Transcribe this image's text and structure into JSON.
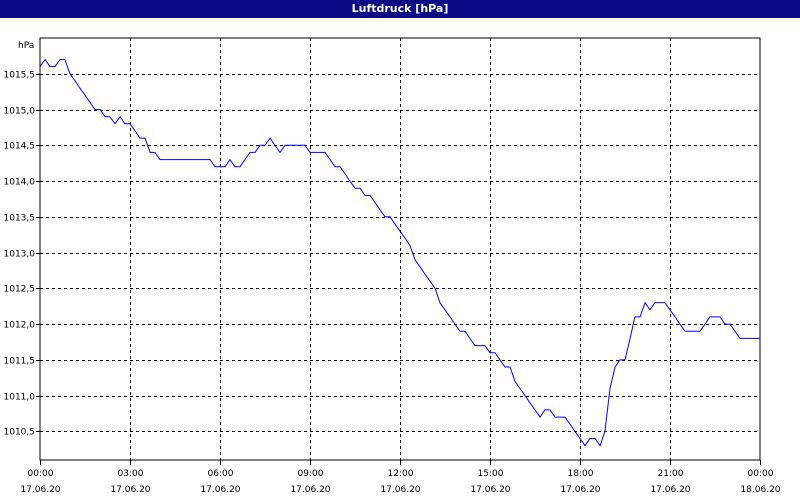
{
  "window": {
    "title": "Luftdruck [hPa]"
  },
  "chart_data": {
    "type": "line",
    "title": "Luftdruck [hPa]",
    "ylabel": "hPa",
    "xlabel": "",
    "ylim": [
      1010.1,
      1016.0
    ],
    "y_ticks": [
      1010.5,
      1011.0,
      1011.5,
      1012.0,
      1012.5,
      1013.0,
      1013.5,
      1014.0,
      1014.5,
      1015.0,
      1015.5
    ],
    "y_tick_labels": [
      "1010,5",
      "1011,0",
      "1011,5",
      "1012,0",
      "1012,5",
      "1013,0",
      "1013,5",
      "1014,0",
      "1014,5",
      "1015,0",
      "1015,5"
    ],
    "xlim_hours": [
      0,
      24
    ],
    "x_ticks": [
      {
        "hour": 0,
        "time": "00:00",
        "date": "17.06.20"
      },
      {
        "hour": 3,
        "time": "03:00",
        "date": "17.06.20"
      },
      {
        "hour": 6,
        "time": "06:00",
        "date": "17.06.20"
      },
      {
        "hour": 9,
        "time": "09:00",
        "date": "17.06.20"
      },
      {
        "hour": 12,
        "time": "12:00",
        "date": "17.06.20"
      },
      {
        "hour": 15,
        "time": "15:00",
        "date": "17.06.20"
      },
      {
        "hour": 18,
        "time": "18:00",
        "date": "17.06.20"
      },
      {
        "hour": 21,
        "time": "21:00",
        "date": "17.06.20"
      },
      {
        "hour": 24,
        "time": "00:00",
        "date": "18.06.20"
      }
    ],
    "grid": true,
    "line_color": "#0000ff",
    "series": [
      {
        "x": [
          0,
          0.17,
          0.33,
          0.5,
          0.67,
          0.83,
          1.0,
          1.17,
          1.33,
          1.5,
          1.67,
          1.83,
          2.0,
          2.17,
          2.33,
          2.5,
          2.67,
          2.83,
          3.0,
          3.17,
          3.33,
          3.5,
          3.67,
          3.83,
          4.0,
          4.17,
          4.33,
          4.5,
          4.67,
          4.83,
          5.0,
          5.17,
          5.33,
          5.5,
          5.67,
          5.83,
          6.0,
          6.17,
          6.33,
          6.5,
          6.67,
          6.83,
          7.0,
          7.17,
          7.33,
          7.5,
          7.67,
          7.83,
          8.0,
          8.17,
          8.33,
          8.5,
          8.67,
          8.83,
          9.0,
          9.17,
          9.33,
          9.5,
          9.67,
          9.83,
          10.0,
          10.17,
          10.33,
          10.5,
          10.67,
          10.83,
          11.0,
          11.17,
          11.33,
          11.5,
          11.67,
          11.83,
          12.0,
          12.17,
          12.33,
          12.5,
          12.67,
          12.83,
          13.0,
          13.17,
          13.33,
          13.5,
          13.67,
          13.83,
          14.0,
          14.17,
          14.33,
          14.5,
          14.67,
          14.83,
          15.0,
          15.17,
          15.33,
          15.5,
          15.67,
          15.83,
          16.0,
          16.17,
          16.33,
          16.5,
          16.67,
          16.83,
          17.0,
          17.17,
          17.33,
          17.5,
          17.67,
          17.83,
          18.0,
          18.17,
          18.33,
          18.5,
          18.67,
          18.83,
          19.0,
          19.17,
          19.33,
          19.5,
          19.67,
          19.83,
          20.0,
          20.17,
          20.33,
          20.5,
          20.67,
          20.83,
          21.0,
          21.17,
          21.33,
          21.5,
          21.67,
          21.83,
          22.0,
          22.17,
          22.33,
          22.5,
          22.67,
          22.83,
          23.0,
          23.17,
          23.33,
          23.5,
          23.67,
          23.83,
          24.0
        ],
        "values": [
          1015.6,
          1015.7,
          1015.6,
          1015.6,
          1015.7,
          1015.7,
          1015.5,
          1015.4,
          1015.3,
          1015.2,
          1015.1,
          1015.0,
          1015.0,
          1014.9,
          1014.9,
          1014.8,
          1014.9,
          1014.8,
          1014.8,
          1014.7,
          1014.6,
          1014.6,
          1014.4,
          1014.4,
          1014.3,
          1014.3,
          1014.3,
          1014.3,
          1014.3,
          1014.3,
          1014.3,
          1014.3,
          1014.3,
          1014.3,
          1014.3,
          1014.2,
          1014.2,
          1014.2,
          1014.3,
          1014.2,
          1014.2,
          1014.3,
          1014.4,
          1014.4,
          1014.5,
          1014.5,
          1014.6,
          1014.5,
          1014.4,
          1014.5,
          1014.5,
          1014.5,
          1014.5,
          1014.5,
          1014.4,
          1014.4,
          1014.4,
          1014.4,
          1014.3,
          1014.2,
          1014.2,
          1014.1,
          1014.0,
          1013.9,
          1013.9,
          1013.8,
          1013.8,
          1013.7,
          1013.6,
          1013.5,
          1013.5,
          1013.4,
          1013.3,
          1013.2,
          1013.1,
          1012.9,
          1012.8,
          1012.7,
          1012.6,
          1012.5,
          1012.3,
          1012.2,
          1012.1,
          1012.0,
          1011.9,
          1011.9,
          1011.8,
          1011.7,
          1011.7,
          1011.7,
          1011.6,
          1011.6,
          1011.5,
          1011.4,
          1011.4,
          1011.2,
          1011.1,
          1011.0,
          1010.9,
          1010.8,
          1010.7,
          1010.8,
          1010.8,
          1010.7,
          1010.7,
          1010.7,
          1010.6,
          1010.5,
          1010.4,
          1010.3,
          1010.4,
          1010.4,
          1010.3,
          1010.5,
          1011.1,
          1011.4,
          1011.5,
          1011.5,
          1011.8,
          1012.1,
          1012.1,
          1012.3,
          1012.2,
          1012.3,
          1012.3,
          1012.3,
          1012.2,
          1012.1,
          1012.0,
          1011.9,
          1011.9,
          1011.9,
          1011.9,
          1012.0,
          1012.1,
          1012.1,
          1012.1,
          1012.0,
          1012.0,
          1011.9,
          1011.8,
          1011.8,
          1011.8,
          1011.8,
          1011.8
        ]
      }
    ]
  }
}
